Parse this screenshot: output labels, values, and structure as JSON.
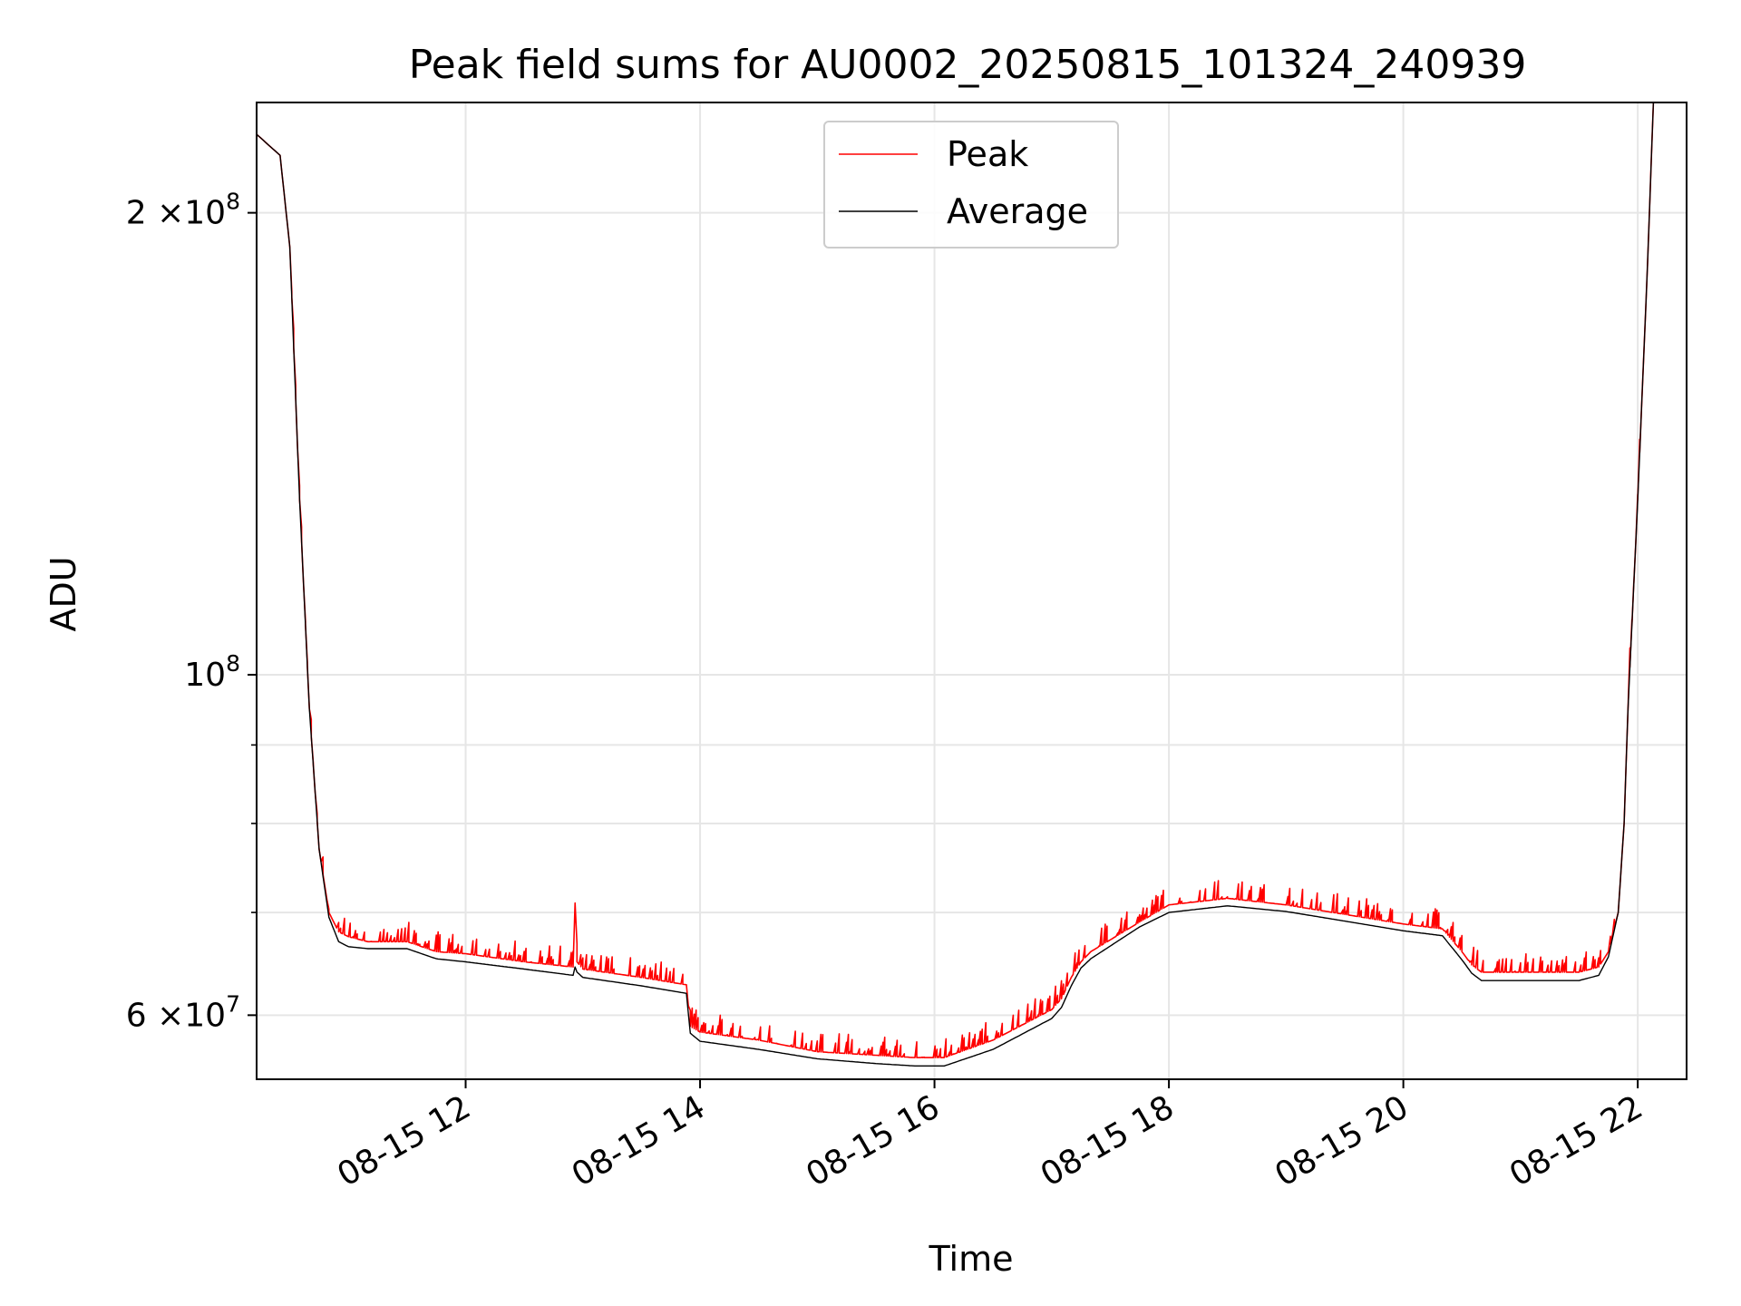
{
  "chart_data": {
    "type": "line",
    "title": "Peak field sums for AU0002_20250815_101324_240939",
    "xlabel": "Time",
    "ylabel": "ADU",
    "x_ticks": [
      "08-15 12",
      "08-15 14",
      "08-15 16",
      "08-15 18",
      "08-15 20",
      "08-15 22"
    ],
    "y_scale": "log",
    "y_ticks": [
      {
        "value": 60000000,
        "mantissa": "6",
        "exponent": "7"
      },
      {
        "value": 100000000,
        "mantissa": "",
        "exponent": "8"
      },
      {
        "value": 200000000,
        "mantissa": "2",
        "exponent": "8"
      }
    ],
    "y_minor_ticks": [
      70000000,
      80000000,
      90000000
    ],
    "times_sep": " ",
    "times_suffix": "×10",
    "xlim": [
      "2025-08-15 10:13",
      "2025-08-15 22:25"
    ],
    "ylim": [
      54500000,
      236000000
    ],
    "grid": true,
    "legend_position": "upper center",
    "series": [
      {
        "name": "Peak",
        "color": "#ff0000",
        "noisy_spikes": true,
        "x": [
          "2025-08-15 10:13",
          "2025-08-15 10:25",
          "2025-08-15 10:30",
          "2025-08-15 10:35",
          "2025-08-15 10:40",
          "2025-08-15 10:45",
          "2025-08-15 10:50",
          "2025-08-15 10:55",
          "2025-08-15 11:00",
          "2025-08-15 11:10",
          "2025-08-15 11:30",
          "2025-08-15 11:45",
          "2025-08-15 12:00",
          "2025-08-15 12:30",
          "2025-08-15 12:55",
          "2025-08-15 12:56",
          "2025-08-15 12:57",
          "2025-08-15 13:00",
          "2025-08-15 13:30",
          "2025-08-15 13:53",
          "2025-08-15 13:55",
          "2025-08-15 14:00",
          "2025-08-15 14:30",
          "2025-08-15 15:00",
          "2025-08-15 15:30",
          "2025-08-15 15:50",
          "2025-08-15 16:05",
          "2025-08-15 16:30",
          "2025-08-15 17:00",
          "2025-08-15 17:05",
          "2025-08-15 17:10",
          "2025-08-15 17:15",
          "2025-08-15 17:20",
          "2025-08-15 17:45",
          "2025-08-15 18:00",
          "2025-08-15 18:30",
          "2025-08-15 19:00",
          "2025-08-15 19:30",
          "2025-08-15 20:00",
          "2025-08-15 20:20",
          "2025-08-15 20:30",
          "2025-08-15 20:35",
          "2025-08-15 20:40",
          "2025-08-15 21:00",
          "2025-08-15 21:30",
          "2025-08-15 21:40",
          "2025-08-15 21:45",
          "2025-08-15 21:50",
          "2025-08-15 21:53",
          "2025-08-15 21:55",
          "2025-08-15 22:00",
          "2025-08-15 22:05",
          "2025-08-15 22:08"
        ],
        "y": [
          225000000,
          218000000,
          190000000,
          130000000,
          95000000,
          77000000,
          70000000,
          68000000,
          67500000,
          67000000,
          67000000,
          66000000,
          65800000,
          65000000,
          64500000,
          71000000,
          65000000,
          64300000,
          63500000,
          62800000,
          59000000,
          58500000,
          57800000,
          56800000,
          56500000,
          56300000,
          56300000,
          57800000,
          60500000,
          61500000,
          63500000,
          65000000,
          66000000,
          69000000,
          70800000,
          71500000,
          70800000,
          69800000,
          68800000,
          68300000,
          66000000,
          64700000,
          64000000,
          64000000,
          64000000,
          64500000,
          66000000,
          70000000,
          80000000,
          95000000,
          130000000,
          185000000,
          236000000
        ]
      },
      {
        "name": "Average",
        "color": "#000000",
        "noisy_spikes": false,
        "x": [
          "2025-08-15 10:13",
          "2025-08-15 10:25",
          "2025-08-15 10:30",
          "2025-08-15 10:35",
          "2025-08-15 10:40",
          "2025-08-15 10:45",
          "2025-08-15 10:50",
          "2025-08-15 10:55",
          "2025-08-15 11:00",
          "2025-08-15 11:10",
          "2025-08-15 11:30",
          "2025-08-15 11:45",
          "2025-08-15 12:00",
          "2025-08-15 12:30",
          "2025-08-15 12:55",
          "2025-08-15 12:56",
          "2025-08-15 12:57",
          "2025-08-15 13:00",
          "2025-08-15 13:30",
          "2025-08-15 13:53",
          "2025-08-15 13:55",
          "2025-08-15 14:00",
          "2025-08-15 14:30",
          "2025-08-15 15:00",
          "2025-08-15 15:30",
          "2025-08-15 15:50",
          "2025-08-15 16:05",
          "2025-08-15 16:30",
          "2025-08-15 17:00",
          "2025-08-15 17:05",
          "2025-08-15 17:10",
          "2025-08-15 17:15",
          "2025-08-15 17:20",
          "2025-08-15 17:45",
          "2025-08-15 18:00",
          "2025-08-15 18:30",
          "2025-08-15 19:00",
          "2025-08-15 19:30",
          "2025-08-15 20:00",
          "2025-08-15 20:20",
          "2025-08-15 20:30",
          "2025-08-15 20:35",
          "2025-08-15 20:40",
          "2025-08-15 21:00",
          "2025-08-15 21:30",
          "2025-08-15 21:40",
          "2025-08-15 21:45",
          "2025-08-15 21:50",
          "2025-08-15 21:53",
          "2025-08-15 21:55",
          "2025-08-15 22:00",
          "2025-08-15 22:05",
          "2025-08-15 22:08"
        ],
        "y": [
          225000000,
          218000000,
          190000000,
          130000000,
          95000000,
          77000000,
          69500000,
          67000000,
          66500000,
          66300000,
          66300000,
          65300000,
          65000000,
          64300000,
          63700000,
          64500000,
          64000000,
          63500000,
          62700000,
          62000000,
          58400000,
          57700000,
          57000000,
          56200000,
          55800000,
          55600000,
          55600000,
          57000000,
          59700000,
          60700000,
          62700000,
          64400000,
          65300000,
          68500000,
          70000000,
          70700000,
          70100000,
          69100000,
          68100000,
          67600000,
          65200000,
          63900000,
          63200000,
          63200000,
          63200000,
          63700000,
          65500000,
          70000000,
          80000000,
          95000000,
          130000000,
          185000000,
          236000000
        ]
      }
    ]
  }
}
